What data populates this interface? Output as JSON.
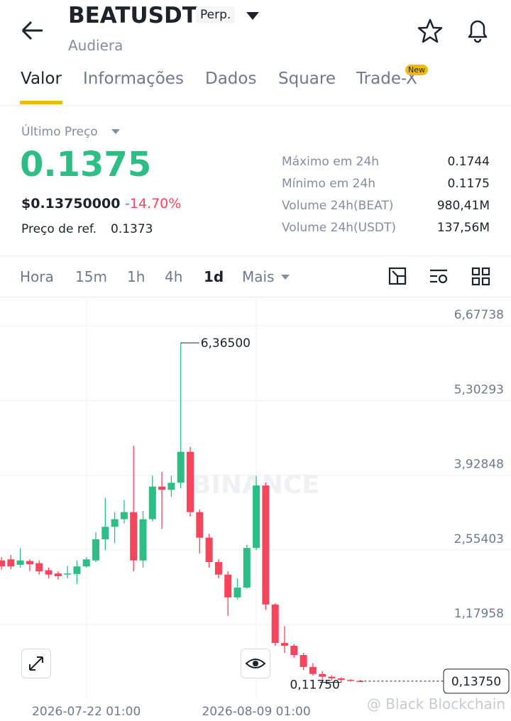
{
  "header": {
    "symbol": "BEATUSDT",
    "badge": "Perp.",
    "name": "Audiera"
  },
  "tabs": [
    "Valor",
    "Informações",
    "Dados",
    "Square",
    "Trade-X"
  ],
  "tab_badge": "New",
  "price": {
    "label": "Último Preço",
    "last": "0.1375",
    "usd": "$0.13750000",
    "change": "-14.70%",
    "ref_label": "Preço de ref.",
    "ref": "0.1373"
  },
  "stats": [
    {
      "label": "Máximo em 24h",
      "value": "0.1744"
    },
    {
      "label": "Mínimo em 24h",
      "value": "0.1175"
    },
    {
      "label": "Volume 24h(BEAT)",
      "value": "980,41M"
    },
    {
      "label": "Volume 24h(USDT)",
      "value": "137,56M"
    }
  ],
  "timeframes": [
    "Hora",
    "15m",
    "1h",
    "4h",
    "1d",
    "Mais"
  ],
  "chart_data": {
    "type": "candlestick",
    "categories": [
      null,
      null,
      null,
      null,
      null,
      null,
      null,
      null,
      null,
      "2026-07-22 01:00",
      null,
      null,
      null,
      null,
      null,
      null,
      null,
      null,
      null,
      null,
      null,
      null,
      null,
      null,
      null,
      null,
      null,
      "2026-08-09 01:00",
      null,
      null,
      null,
      null,
      null,
      null,
      null,
      null,
      null,
      null,
      null
    ],
    "open": [
      2.36,
      2.38,
      2.28,
      2.35,
      2.31,
      2.18,
      2.12,
      2.1,
      2.11,
      2.25,
      2.36,
      2.75,
      2.98,
      3.12,
      3.25,
      2.36,
      3.12,
      3.72,
      3.66,
      3.79,
      4.36,
      3.25,
      2.78,
      2.33,
      2.1,
      1.68,
      1.86,
      2.59,
      3.74,
      1.55,
      0.84,
      0.79,
      0.62,
      0.4,
      0.27,
      0.22,
      0.19,
      0.16,
      0.145
    ],
    "high": [
      2.42,
      2.46,
      2.59,
      2.38,
      2.36,
      2.23,
      2.16,
      2.26,
      2.36,
      2.42,
      2.88,
      3.51,
      3.25,
      3.47,
      4.47,
      3.27,
      3.92,
      3.99,
      3.92,
      6.365,
      4.45,
      3.3,
      2.85,
      2.38,
      2.16,
      2.03,
      2.65,
      3.92,
      3.79,
      1.57,
      1.15,
      0.82,
      0.66,
      0.47,
      0.32,
      0.25,
      0.21,
      0.18,
      0.16
    ],
    "low": [
      2.19,
      2.2,
      2.23,
      2.16,
      2.1,
      2.03,
      2.01,
      2.03,
      1.93,
      2.23,
      2.33,
      2.55,
      2.68,
      3.04,
      2.16,
      2.23,
      3.08,
      2.94,
      3.53,
      3.69,
      3.17,
      2.49,
      2.23,
      2.03,
      1.34,
      1.64,
      1.84,
      2.55,
      1.45,
      0.79,
      0.66,
      0.57,
      0.34,
      0.24,
      0.17,
      0.15,
      0.1175,
      0.13,
      0.13
    ],
    "close": [
      2.25,
      2.25,
      2.36,
      2.29,
      2.16,
      2.1,
      2.07,
      2.12,
      2.25,
      2.38,
      2.75,
      2.98,
      3.12,
      3.25,
      2.36,
      3.12,
      3.72,
      3.66,
      3.79,
      4.36,
      3.25,
      2.78,
      2.33,
      2.1,
      1.68,
      1.86,
      2.59,
      3.74,
      1.55,
      0.84,
      0.79,
      0.62,
      0.4,
      0.27,
      0.22,
      0.19,
      0.16,
      0.145,
      0.1375
    ],
    "up_color": "#2ebd85",
    "down_color": "#f6465d",
    "ylim": [
      -0.19,
      7.19
    ],
    "yticks": [
      {
        "value": 6.67738,
        "label": "6,67738"
      },
      {
        "value": 5.30293,
        "label": "5,30293"
      },
      {
        "value": 3.92848,
        "label": "3,92848"
      },
      {
        "value": 2.55403,
        "label": "2,55403"
      },
      {
        "value": 1.17958,
        "label": "1,17958"
      }
    ],
    "grid": true,
    "high_label": {
      "value": 6.365,
      "label": "6,36500"
    },
    "low_label": {
      "value": 0.1175,
      "label": "0,11750"
    },
    "last_label": {
      "value": 0.1375,
      "label": "0,13750"
    },
    "watermark": "BINANCE"
  },
  "footer_watermark": "@ Black Blockchain"
}
